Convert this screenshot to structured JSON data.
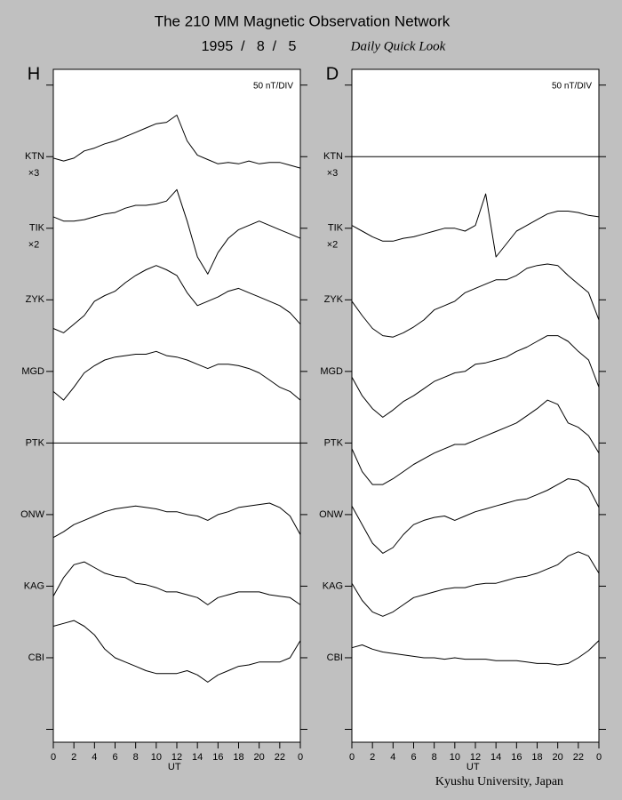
{
  "header": {
    "title": "The 210 MM Magnetic Observation Network",
    "date": "1995  /   8  /   5",
    "product": "Daily Quick Look"
  },
  "footer": "Kyushu University, Japan",
  "chart_data": [
    {
      "type": "line",
      "label": "H",
      "scale_label": "50 nT/DIV",
      "color": "#000000",
      "x": [
        0,
        1,
        2,
        3,
        4,
        5,
        6,
        7,
        8,
        9,
        10,
        11,
        12,
        13,
        14,
        15,
        16,
        17,
        18,
        19,
        20,
        21,
        22,
        23,
        24
      ],
      "xlim": [
        0,
        24
      ],
      "xticks": [
        0,
        2,
        4,
        6,
        8,
        10,
        12,
        14,
        16,
        18,
        20,
        22,
        {
          "value": 24,
          "label": "0"
        }
      ],
      "xlabel": "UT",
      "ylim": [
        -9,
        461
      ],
      "yticks": [
        {
          "value": 0,
          "label": null
        },
        {
          "value": 50,
          "label": "CBI"
        },
        {
          "value": 100,
          "label": "KAG"
        },
        {
          "value": 150,
          "label": "ONW"
        },
        {
          "value": 200,
          "label": "PTK"
        },
        {
          "value": 250,
          "label": "MGD"
        },
        {
          "value": 300,
          "label": "ZYK"
        },
        {
          "value": 350,
          "label": "TIK"
        },
        {
          "value": 400,
          "label": "KTN"
        },
        {
          "value": 450,
          "label": null
        }
      ],
      "series": [
        {
          "gain": "×3",
          "values": [
            399,
            397,
            399,
            404,
            406,
            409,
            411,
            414,
            417,
            420,
            423,
            424,
            429,
            411,
            401,
            398,
            395,
            396,
            395,
            397,
            395,
            396,
            396,
            394,
            392
          ]
        },
        {
          "gain": "×2",
          "values": [
            358,
            355,
            355,
            356,
            358,
            360,
            361,
            364,
            366,
            366,
            367,
            369,
            377,
            355,
            330,
            318,
            333,
            343,
            349,
            352,
            355,
            352,
            349,
            346,
            343
          ]
        },
        {
          "values": [
            280,
            277,
            283,
            289,
            299,
            303,
            306,
            312,
            317,
            321,
            324,
            321,
            317,
            305,
            296,
            299,
            302,
            306,
            308,
            305,
            302,
            299,
            296,
            291,
            283
          ]
        },
        {
          "values": [
            236,
            230,
            239,
            249,
            254,
            258,
            260,
            261,
            262,
            262,
            264,
            261,
            260,
            258,
            255,
            252,
            255,
            255,
            254,
            252,
            249,
            244,
            239,
            236,
            230
          ]
        },
        {
          "values": [
            200,
            200,
            200,
            200,
            200,
            200,
            200,
            200,
            200,
            200,
            200,
            200,
            200,
            200,
            200,
            200,
            200,
            200,
            200,
            200,
            200,
            200,
            200,
            200,
            200
          ]
        },
        {
          "values": [
            134,
            138,
            143,
            146,
            149,
            152,
            154,
            155,
            156,
            155,
            154,
            152,
            152,
            150,
            149,
            146,
            150,
            152,
            155,
            156,
            157,
            158,
            155,
            149,
            136
          ]
        },
        {
          "values": [
            93,
            106,
            115,
            117,
            113,
            109,
            107,
            106,
            102,
            101,
            99,
            96,
            96,
            94,
            92,
            87,
            92,
            94,
            96,
            96,
            96,
            94,
            93,
            92,
            87
          ]
        },
        {
          "values": [
            72,
            74,
            76,
            72,
            66,
            56,
            50,
            47,
            44,
            41,
            39,
            39,
            39,
            41,
            38,
            33,
            38,
            41,
            44,
            45,
            47,
            47,
            47,
            50,
            62
          ]
        }
      ]
    },
    {
      "type": "line",
      "label": "D",
      "scale_label": "50 nT/DIV",
      "color": "#000000",
      "x": [
        0,
        1,
        2,
        3,
        4,
        5,
        6,
        7,
        8,
        9,
        10,
        11,
        12,
        13,
        14,
        15,
        16,
        17,
        18,
        19,
        20,
        21,
        22,
        23,
        24
      ],
      "xlim": [
        0,
        24
      ],
      "xticks": [
        0,
        2,
        4,
        6,
        8,
        10,
        12,
        14,
        16,
        18,
        20,
        22,
        {
          "value": 24,
          "label": "0"
        }
      ],
      "xlabel": "UT",
      "ylim": [
        -9,
        461
      ],
      "yticks": [
        {
          "value": 0,
          "label": null
        },
        {
          "value": 50,
          "label": "CBI"
        },
        {
          "value": 100,
          "label": "KAG"
        },
        {
          "value": 150,
          "label": "ONW"
        },
        {
          "value": 200,
          "label": "PTK"
        },
        {
          "value": 250,
          "label": "MGD"
        },
        {
          "value": 300,
          "label": "ZYK"
        },
        {
          "value": 350,
          "label": "TIK"
        },
        {
          "value": 400,
          "label": "KTN"
        },
        {
          "value": 450,
          "label": null
        }
      ],
      "series": [
        {
          "gain": "×3",
          "values": [
            400,
            400,
            400,
            400,
            400,
            400,
            400,
            400,
            400,
            400,
            400,
            400,
            400,
            400,
            400,
            400,
            400,
            400,
            400,
            400,
            400,
            400,
            400,
            400,
            400
          ]
        },
        {
          "gain": "×2",
          "values": [
            352,
            348,
            344,
            341,
            341,
            343,
            344,
            346,
            348,
            350,
            350,
            348,
            352,
            374,
            330,
            339,
            348,
            352,
            356,
            360,
            362,
            362,
            361,
            359,
            358
          ]
        },
        {
          "values": [
            299,
            289,
            280,
            275,
            274,
            277,
            281,
            286,
            293,
            296,
            299,
            305,
            308,
            311,
            314,
            314,
            317,
            322,
            324,
            325,
            324,
            317,
            311,
            305,
            286
          ]
        },
        {
          "values": [
            246,
            233,
            224,
            218,
            223,
            229,
            233,
            238,
            243,
            246,
            249,
            250,
            255,
            256,
            258,
            260,
            264,
            267,
            271,
            275,
            275,
            271,
            264,
            258,
            239
          ]
        },
        {
          "values": [
            196,
            180,
            171,
            171,
            175,
            180,
            185,
            189,
            193,
            196,
            199,
            199,
            202,
            205,
            208,
            211,
            214,
            219,
            224,
            230,
            227,
            214,
            211,
            205,
            193
          ]
        },
        {
          "values": [
            156,
            143,
            130,
            123,
            127,
            136,
            143,
            146,
            148,
            149,
            146,
            149,
            152,
            154,
            156,
            158,
            160,
            161,
            164,
            167,
            171,
            175,
            174,
            169,
            155
          ]
        },
        {
          "values": [
            102,
            90,
            82,
            79,
            82,
            87,
            92,
            94,
            96,
            98,
            99,
            99,
            101,
            102,
            102,
            104,
            106,
            107,
            109,
            112,
            115,
            121,
            124,
            121,
            109
          ]
        },
        {
          "values": [
            57,
            59,
            56,
            54,
            53,
            52,
            51,
            50,
            50,
            49,
            50,
            49,
            49,
            49,
            48,
            48,
            48,
            47,
            46,
            46,
            45,
            46,
            50,
            55,
            62
          ]
        }
      ]
    }
  ]
}
